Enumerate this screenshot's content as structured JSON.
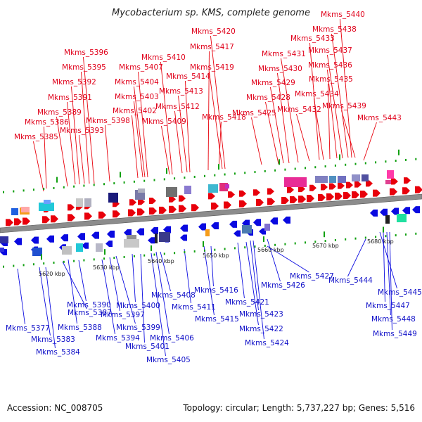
{
  "title": "Mycobacterium sp. KMS, complete genome",
  "colors": {
    "forward": "#e8000b",
    "reverse": "#0a0ae0",
    "backbone": "#8c8c8c",
    "tick": "#11a011"
  },
  "forward_labels": [
    "Mkms_5385",
    "Mkms_5386",
    "Mkms_5389",
    "Mkms_5391",
    "Mkms_5392",
    "Mkms_5393",
    "Mkms_5395",
    "Mkms_5396",
    "Mkms_5398",
    "Mkms_5402",
    "Mkms_5403",
    "Mkms_5404",
    "Mkms_5407",
    "Mkms_5409",
    "Mkms_5410",
    "Mkms_5412",
    "Mkms_5413",
    "Mkms_5414",
    "Mkms_5417",
    "Mkms_5418",
    "Mkms_5419",
    "Mkms_5420",
    "Mkms_5425",
    "Mkms_5428",
    "Mkms_5429",
    "Mkms_5430",
    "Mkms_5431",
    "Mkms_5432",
    "Mkms_5433",
    "Mkms_5434",
    "Mkms_5435",
    "Mkms_5436",
    "Mkms_5437",
    "Mkms_5438",
    "Mkms_5439",
    "Mkms_5440",
    "Mkms_5443"
  ],
  "reverse_labels": [
    "Mkms_5377",
    "Mkms_5383",
    "Mkms_5384",
    "Mkms_5387",
    "Mkms_5388",
    "Mkms_5390",
    "Mkms_5394",
    "Mkms_5397",
    "Mkms_5399",
    "Mkms_5400",
    "Mkms_5401",
    "Mkms_5405",
    "Mkms_5406",
    "Mkms_5408",
    "Mkms_5411",
    "Mkms_5415",
    "Mkms_5416",
    "Mkms_5421",
    "Mkms_5422",
    "Mkms_5423",
    "Mkms_5424",
    "Mkms_5426",
    "Mkms_5427",
    "Mkms_5444",
    "Mkms_5445",
    "Mkms_5447",
    "Mkms_5448",
    "Mkms_5449"
  ],
  "ticks": [
    "5620 kbp",
    "5630 kbp",
    "5640 kbp",
    "5650 kbp",
    "5660 kbp",
    "5670 kbp",
    "5680 kbp"
  ],
  "footer": {
    "accession": "Accession: NC_008705",
    "summary": "Topology: circular; Length: 5,737,227 bp; Genes: 5,516"
  }
}
